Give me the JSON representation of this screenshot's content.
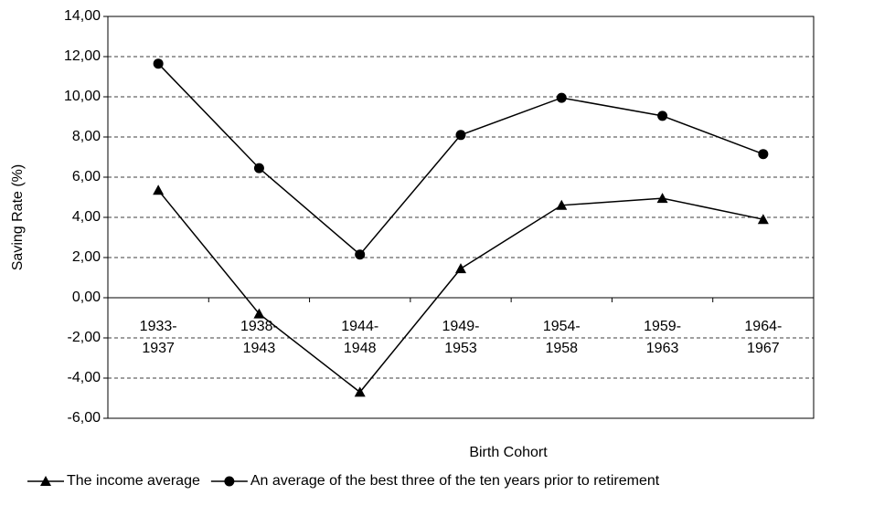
{
  "chart_data": {
    "type": "line",
    "x_label": "Birth Cohort",
    "y_label": "Saving Rate (%)",
    "categories": [
      [
        "1933-",
        "1937"
      ],
      [
        "1938-",
        "1943"
      ],
      [
        "1944-",
        "1948"
      ],
      [
        "1949-",
        "1953"
      ],
      [
        "1954-",
        "1958"
      ],
      [
        "1959-",
        "1963"
      ],
      [
        "1964-",
        "1967"
      ]
    ],
    "series": [
      {
        "name": "The income average",
        "color": "#000000",
        "marker": "triangle",
        "values": [
          5.35,
          -0.8,
          -4.7,
          1.45,
          4.6,
          4.95,
          3.9
        ]
      },
      {
        "name": "An average of the best three of the ten years prior to retirement",
        "color": "#000000",
        "marker": "circle",
        "values": [
          11.65,
          6.45,
          2.15,
          8.1,
          9.95,
          9.05,
          7.15
        ]
      }
    ],
    "ylim": [
      -6,
      14
    ],
    "yticks": [
      {
        "value": -6,
        "label": "-6,00"
      },
      {
        "value": -4,
        "label": "-4,00"
      },
      {
        "value": -2,
        "label": "-2,00"
      },
      {
        "value": 0,
        "label": "0,00"
      },
      {
        "value": 2,
        "label": "2,00"
      },
      {
        "value": 4,
        "label": "4,00"
      },
      {
        "value": 6,
        "label": "6,00"
      },
      {
        "value": 8,
        "label": "8,00"
      },
      {
        "value": 10,
        "label": "10,00"
      },
      {
        "value": 12,
        "label": "12,00"
      },
      {
        "value": 14,
        "label": "14,00"
      }
    ],
    "grid": true,
    "legend": "bottom"
  }
}
